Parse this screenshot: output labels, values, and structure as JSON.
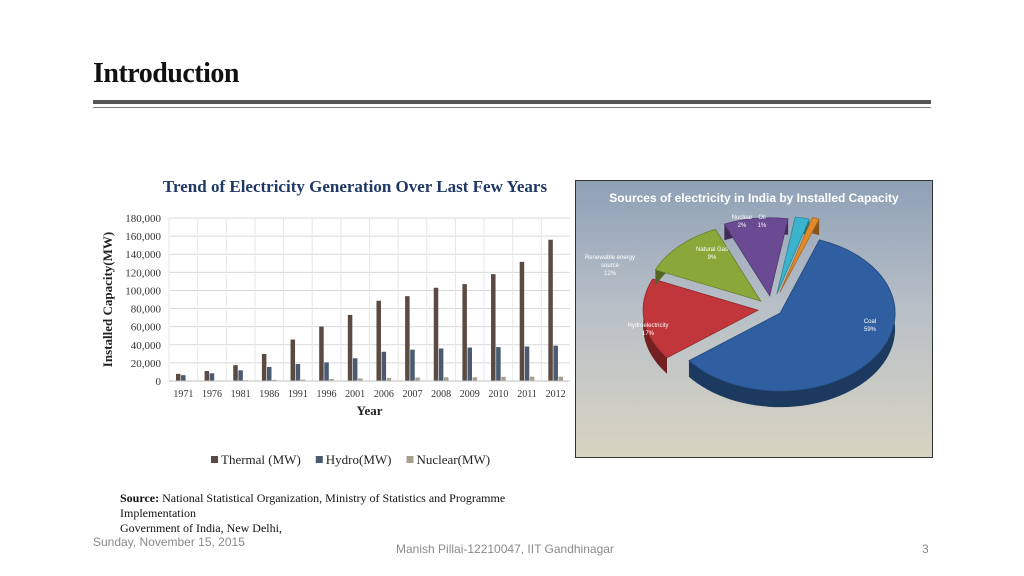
{
  "slide": {
    "title": "Introduction",
    "source_label": "Source:",
    "source_text": "National Statistical Organization, Ministry of Statistics and Programme Implementation",
    "source_line2": "Government of India, New Delhi,"
  },
  "footer": {
    "date": "Sunday, November 15, 2015",
    "author": "Manish Pillai-12210047, IIT Gandhinagar",
    "page": "3"
  },
  "chart_data": [
    {
      "type": "bar",
      "title": "Trend of Electricity Generation Over Last Few Years",
      "xlabel": "Year",
      "ylabel": "Installed Capacity(MW)",
      "ylim": [
        0,
        180000
      ],
      "yticks": [
        "0",
        "20,000",
        "40,000",
        "60,000",
        "80,000",
        "100,000",
        "120,000",
        "140,000",
        "160,000",
        "180,000"
      ],
      "categories": [
        "1971",
        "1976",
        "1981",
        "1986",
        "1991",
        "1996",
        "2001",
        "2006",
        "2007",
        "2008",
        "2009",
        "2010",
        "2011",
        "2012"
      ],
      "series": [
        {
          "name": "Thermal (MW)",
          "color": "#5b4a42",
          "values": [
            7900,
            11000,
            17500,
            29900,
            45800,
            60100,
            73000,
            88600,
            93700,
            103000,
            107000,
            118000,
            131600,
            156000
          ]
        },
        {
          "name": "Hydro(MW)",
          "color": "#4a5a70",
          "values": [
            6400,
            8500,
            11800,
            15500,
            18800,
            20600,
            25100,
            32300,
            34600,
            35900,
            37000,
            37400,
            38100,
            39000
          ]
        },
        {
          "name": "Nuclear(MW)",
          "color": "#a8a08f",
          "values": [
            400,
            600,
            900,
            1300,
            1600,
            2200,
            2900,
            3400,
            3900,
            4100,
            4100,
            4600,
            4800,
            4800
          ]
        }
      ],
      "legend": "bottom"
    },
    {
      "type": "pie",
      "title": "Sources of electricity in India by Installed Capacity",
      "slices": [
        {
          "label": "Coal",
          "value": 59,
          "display": "59%",
          "color": "#2f5fa0"
        },
        {
          "label": "Hydroelectricity",
          "value": 17,
          "display": "17%",
          "color": "#c0363a"
        },
        {
          "label": "Renewable energy source",
          "value": 12,
          "display": "12%",
          "color": "#8aa83a"
        },
        {
          "label": "Natural Gas",
          "value": 9,
          "display": "9%",
          "color": "#6a4a93"
        },
        {
          "label": "Nuclear",
          "value": 2,
          "display": "2%",
          "color": "#3bb3cc"
        },
        {
          "label": "Oil",
          "value": 1,
          "display": "1%",
          "color": "#e08a2a"
        }
      ]
    }
  ]
}
